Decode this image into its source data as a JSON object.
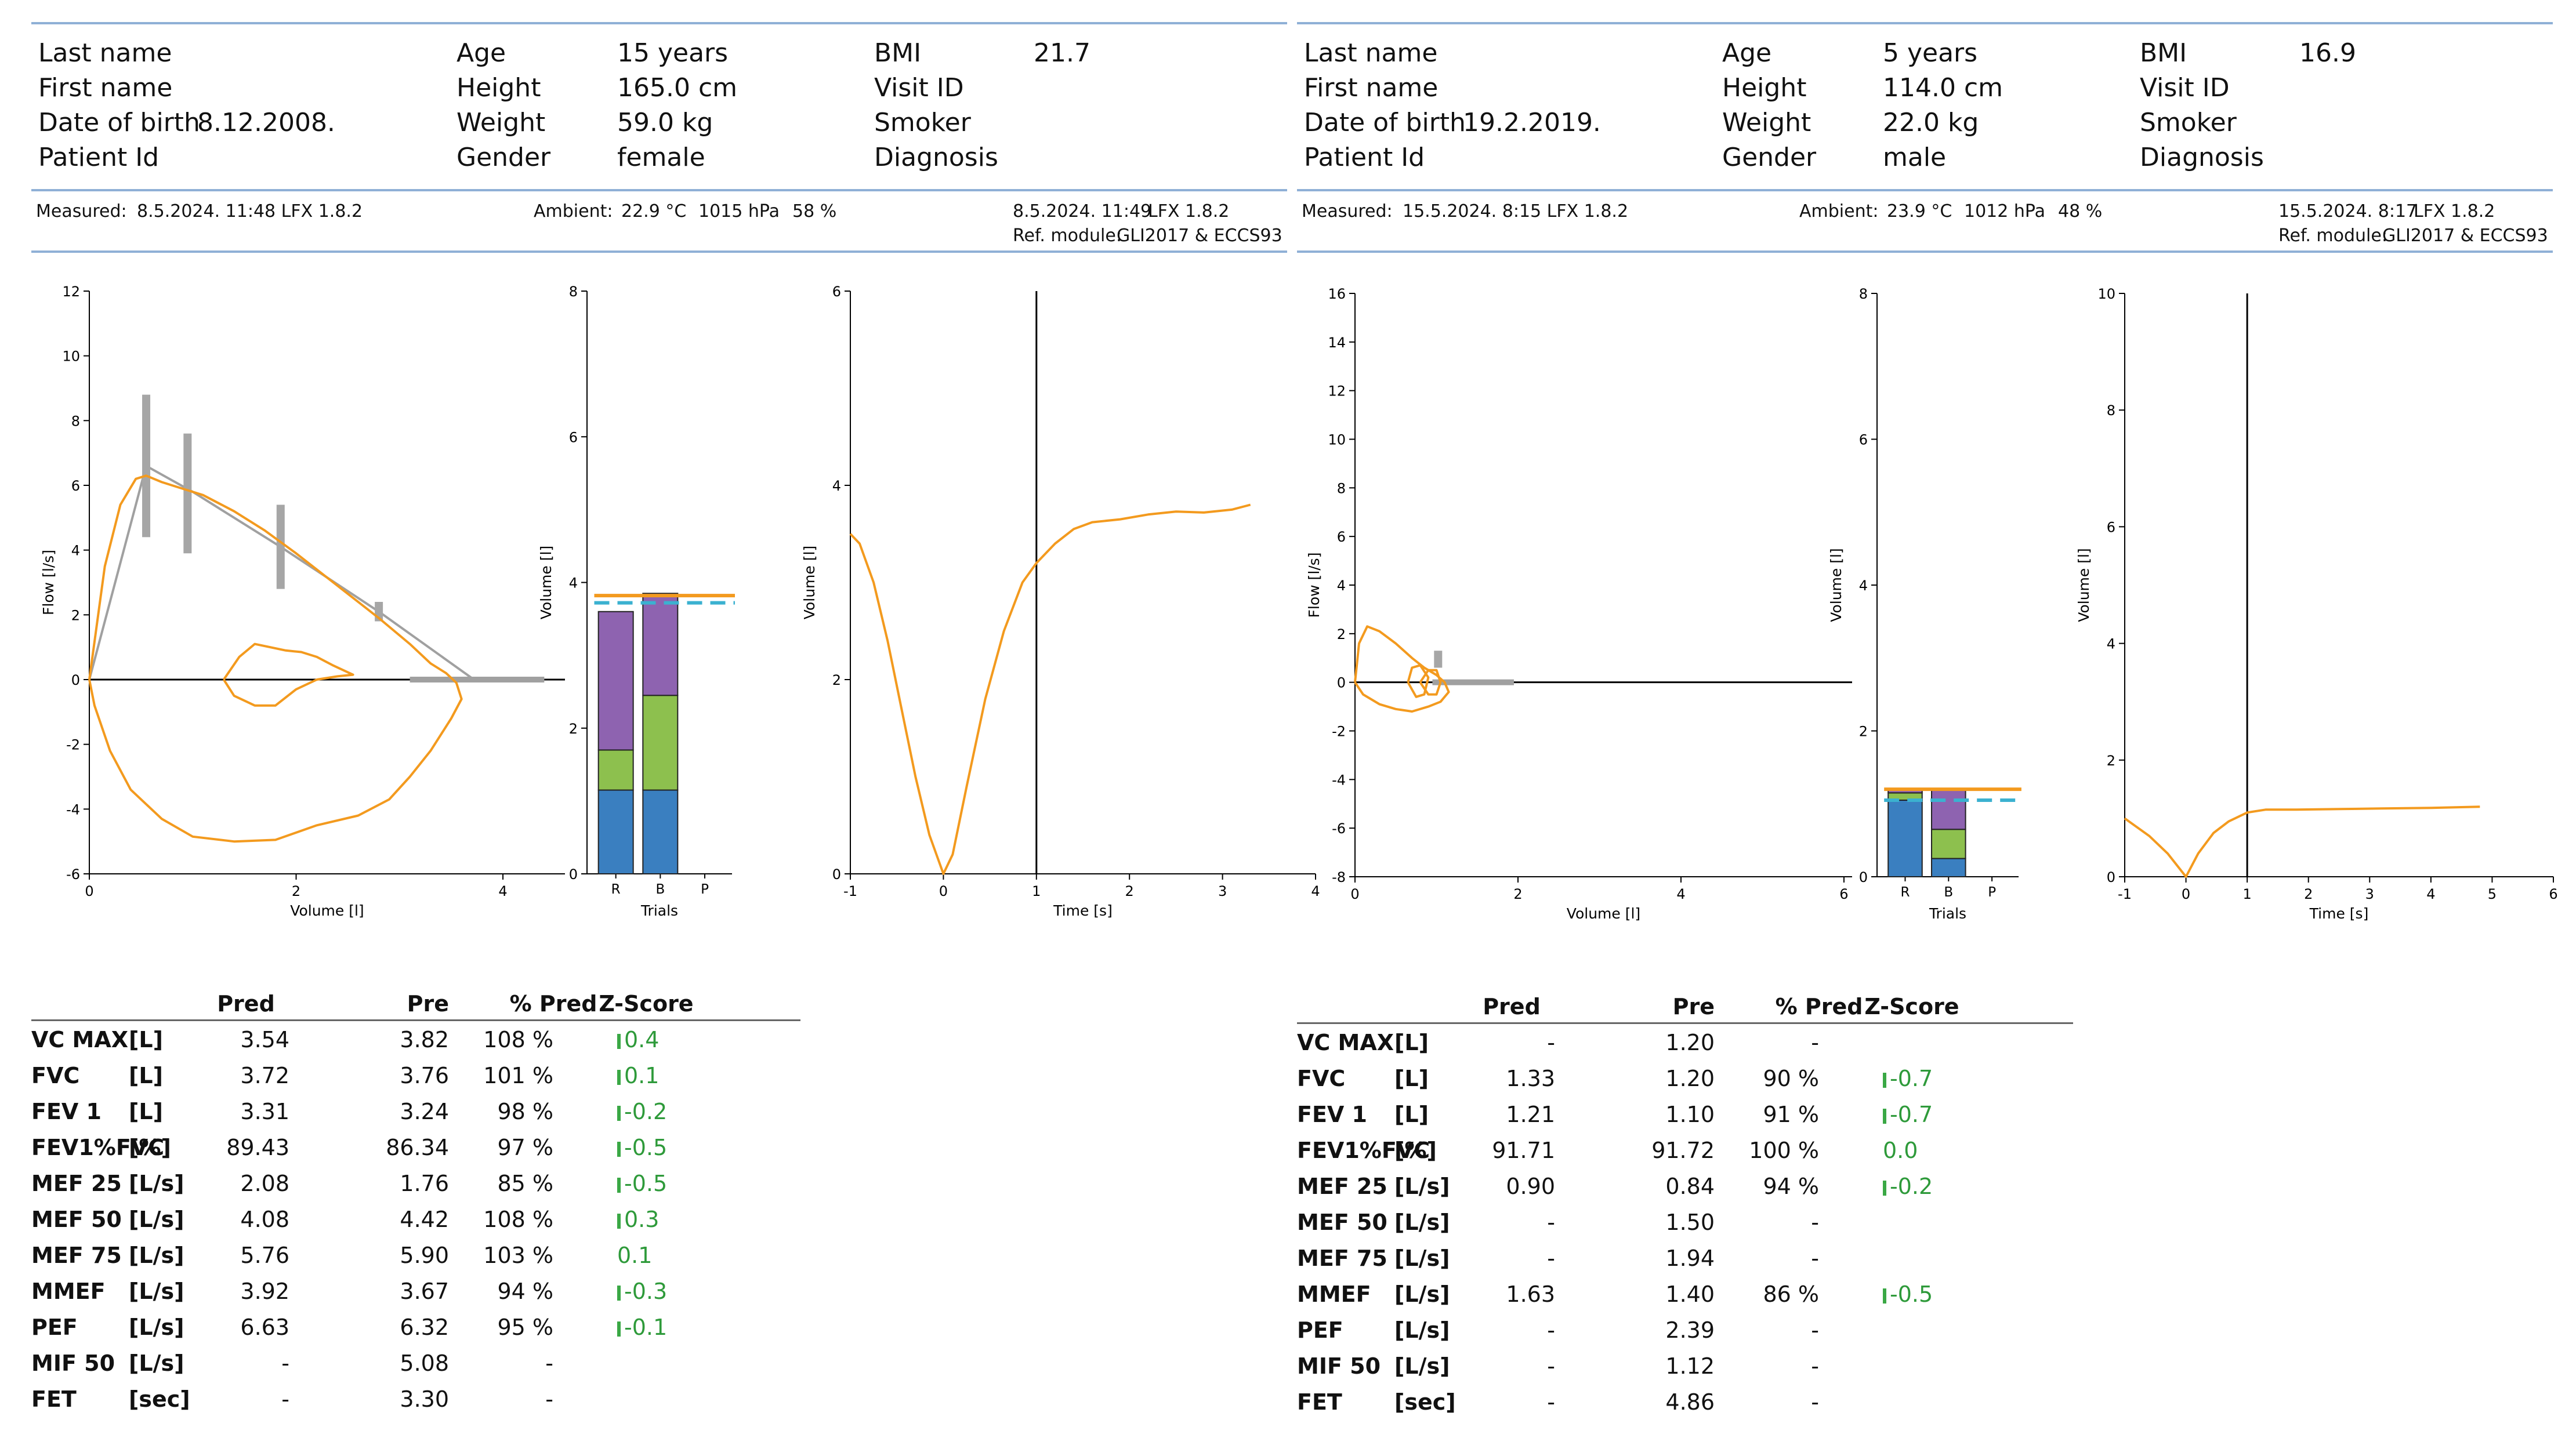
{
  "reports": [
    {
      "patient": {
        "last_name_label": "Last name",
        "first_name_label": "First name",
        "dob_label": "Date of birth",
        "dob": "8.12.2008.",
        "patient_id_label": "Patient Id",
        "age_label": "Age",
        "age": "15 years",
        "height_label": "Height",
        "height": "165.0 cm",
        "weight_label": "Weight",
        "weight": "59.0 kg",
        "gender_label": "Gender",
        "gender": "female",
        "bmi_label": "BMI",
        "bmi": "21.7",
        "visit_id_label": "Visit ID",
        "smoker_label": "Smoker",
        "diagnosis_label": "Diagnosis"
      },
      "measured": {
        "label": "Measured:",
        "value": "8.5.2024. 11:48 LFX 1.8.2",
        "ambient_label": "Ambient:",
        "temp": "22.9 °C",
        "pressure": "1015 hPa",
        "humidity": "58 %",
        "second_time": "8.5.2024. 11:49",
        "second_sw": "LFX 1.8.2",
        "ref_label": "Ref. module:",
        "ref_value": "GLI2017 & ECCS93"
      },
      "chart_data": [
        {
          "type": "line",
          "xlabel": "Volume [l]",
          "ylabel": "Flow [l/s]",
          "xlim": [
            0,
            4.6
          ],
          "ylim": [
            -6,
            12
          ],
          "xticks": [
            0,
            2,
            4
          ],
          "yticks": [
            -6,
            -4,
            -2,
            0,
            2,
            4,
            6,
            8,
            10,
            12
          ],
          "series": [
            {
              "x": [
                0,
                0.15,
                0.3,
                0.45,
                0.55,
                0.7,
                0.9,
                1.1,
                1.4,
                1.7,
                2.0,
                2.4,
                2.8,
                3.1,
                3.3,
                3.45,
                3.55,
                3.6,
                3.5,
                3.3,
                3.1,
                2.9,
                2.6,
                2.2,
                1.8,
                1.4,
                1.0,
                0.7,
                0.4,
                0.2,
                0.05,
                0
              ],
              "y": [
                0,
                3.5,
                5.4,
                6.2,
                6.3,
                6.1,
                5.9,
                5.7,
                5.2,
                4.6,
                3.9,
                2.9,
                1.9,
                1.1,
                0.5,
                0.2,
                -0.1,
                -0.6,
                -1.2,
                -2.2,
                -3.0,
                -3.7,
                -4.2,
                -4.5,
                -4.95,
                -5.0,
                -4.85,
                -4.3,
                -3.4,
                -2.2,
                -0.8,
                0
              ]
            },
            {
              "x": [
                1.3,
                1.45,
                1.6,
                1.75,
                1.9,
                2.05,
                2.2,
                2.35,
                2.55,
                2.4,
                2.2,
                2.0,
                1.8,
                1.6,
                1.4,
                1.3
              ],
              "y": [
                0.0,
                0.7,
                1.1,
                1.0,
                0.9,
                0.85,
                0.7,
                0.45,
                0.15,
                0.1,
                0.0,
                -0.3,
                -0.8,
                -0.8,
                -0.5,
                0.0
              ]
            }
          ],
          "predicted": {
            "x": [
              0,
              0.55,
              1.0,
              1.85,
              2.8,
              3.72
            ],
            "y": [
              0,
              6.6,
              5.8,
              4.1,
              2.1,
              0
            ]
          },
          "ranges": [
            {
              "x": 0.55,
              "ymin": 4.4,
              "ymax": 8.8
            },
            {
              "x": 0.95,
              "ymin": 3.9,
              "ymax": 7.6
            },
            {
              "x": 1.85,
              "ymin": 2.8,
              "ymax": 5.4
            },
            {
              "x": 2.8,
              "ymin": 1.8,
              "ymax": 2.4
            }
          ],
          "baseline_bar": {
            "xmin": 3.1,
            "xmax": 4.4
          }
        },
        {
          "type": "bar",
          "xlabel": "Trials",
          "ylabel": "Volume [l]",
          "categories": [
            "R",
            "B",
            "P"
          ],
          "ylim": [
            0,
            8
          ],
          "yticks": [
            0,
            2,
            4,
            6,
            8
          ],
          "stacks": [
            {
              "category": "R",
              "segments": [
                1.15,
                0.55,
                1.9
              ]
            },
            {
              "category": "B",
              "segments": [
                1.15,
                1.3,
                1.4
              ]
            }
          ],
          "segment_colors": [
            "#3a7fc0",
            "#8dc04e",
            "#8e63b0"
          ],
          "pred_line": 3.82,
          "pred_dashed": 3.72
        },
        {
          "type": "line",
          "xlabel": "Time [s]",
          "ylabel": "Volume [l]",
          "xlim": [
            -1,
            4
          ],
          "ylim": [
            0,
            6
          ],
          "xticks": [
            -1,
            0,
            1,
            2,
            3,
            4
          ],
          "yticks": [
            0,
            2,
            4,
            6
          ],
          "marker_x": 1,
          "series": [
            {
              "x": [
                -1,
                -0.9,
                -0.75,
                -0.6,
                -0.45,
                -0.3,
                -0.15,
                0,
                0.1,
                0.25,
                0.45,
                0.65,
                0.85,
                1.0,
                1.2,
                1.4,
                1.6,
                1.9,
                2.2,
                2.5,
                2.8,
                3.1,
                3.3
              ],
              "y": [
                3.5,
                3.4,
                3.0,
                2.4,
                1.7,
                1.0,
                0.4,
                0.0,
                0.2,
                0.9,
                1.8,
                2.5,
                3.0,
                3.2,
                3.4,
                3.55,
                3.62,
                3.65,
                3.7,
                3.73,
                3.72,
                3.75,
                3.8
              ]
            }
          ]
        }
      ],
      "table": {
        "headers": {
          "pred": "Pred",
          "pre": "Pre",
          "pct": "% Pred",
          "z": "Z-Score"
        },
        "rows": [
          {
            "name": "VC MAX",
            "unit": "[L]",
            "pred": "3.54",
            "pre": "3.82",
            "pct": "108 %",
            "z": "0.4",
            "zbar": true
          },
          {
            "name": "FVC",
            "unit": "[L]",
            "pred": "3.72",
            "pre": "3.76",
            "pct": "101 %",
            "z": "0.1",
            "zbar": true
          },
          {
            "name": "FEV 1",
            "unit": "[L]",
            "pred": "3.31",
            "pre": "3.24",
            "pct": "98 %",
            "z": "-0.2",
            "zbar": true
          },
          {
            "name": "FEV1%FVC",
            "unit": "[%]",
            "pred": "89.43",
            "pre": "86.34",
            "pct": "97 %",
            "z": "-0.5",
            "zbar": true
          },
          {
            "name": "MEF 25",
            "unit": "[L/s]",
            "pred": "2.08",
            "pre": "1.76",
            "pct": "85 %",
            "z": "-0.5",
            "zbar": true
          },
          {
            "name": "MEF 50",
            "unit": "[L/s]",
            "pred": "4.08",
            "pre": "4.42",
            "pct": "108 %",
            "z": "0.3",
            "zbar": true
          },
          {
            "name": "MEF 75",
            "unit": "[L/s]",
            "pred": "5.76",
            "pre": "5.90",
            "pct": "103 %",
            "z": "0.1",
            "zbar": false
          },
          {
            "name": "MMEF",
            "unit": "[L/s]",
            "pred": "3.92",
            "pre": "3.67",
            "pct": "94 %",
            "z": "-0.3",
            "zbar": true
          },
          {
            "name": "PEF",
            "unit": "[L/s]",
            "pred": "6.63",
            "pre": "6.32",
            "pct": "95 %",
            "z": "-0.1",
            "zbar": true
          },
          {
            "name": "MIF 50",
            "unit": "[L/s]",
            "pred": "-",
            "pre": "5.08",
            "pct": "-",
            "z": "",
            "zbar": false
          },
          {
            "name": "FET",
            "unit": "[sec]",
            "pred": "-",
            "pre": "3.30",
            "pct": "-",
            "z": "",
            "zbar": false
          }
        ]
      }
    },
    {
      "patient": {
        "last_name_label": "Last name",
        "first_name_label": "First name",
        "dob_label": "Date of birth",
        "dob": "19.2.2019.",
        "patient_id_label": "Patient Id",
        "age_label": "Age",
        "age": "5 years",
        "height_label": "Height",
        "height": "114.0 cm",
        "weight_label": "Weight",
        "weight": "22.0 kg",
        "gender_label": "Gender",
        "gender": "male",
        "bmi_label": "BMI",
        "bmi": "16.9",
        "visit_id_label": "Visit ID",
        "smoker_label": "Smoker",
        "diagnosis_label": "Diagnosis"
      },
      "measured": {
        "label": "Measured:",
        "value": "15.5.2024. 8:15 LFX 1.8.2",
        "ambient_label": "Ambient:",
        "temp": "23.9 °C",
        "pressure": "1012 hPa",
        "humidity": "48 %",
        "second_time": "15.5.2024. 8:17",
        "second_sw": "LFX 1.8.2",
        "ref_label": "Ref. module:",
        "ref_value": "GLI2017 & ECCS93"
      },
      "chart_data": [
        {
          "type": "line",
          "xlabel": "Volume [l]",
          "ylabel": "Flow [l/s]",
          "xlim": [
            0,
            6.1
          ],
          "ylim": [
            -8,
            16
          ],
          "xticks": [
            0,
            2,
            4,
            6
          ],
          "yticks": [
            -8,
            -6,
            -4,
            -2,
            0,
            2,
            4,
            6,
            8,
            10,
            12,
            14,
            16
          ],
          "series": [
            {
              "x": [
                0,
                0.05,
                0.15,
                0.3,
                0.5,
                0.7,
                0.85,
                1.0,
                1.1,
                1.15,
                1.05,
                0.9,
                0.7,
                0.5,
                0.3,
                0.1,
                0
              ],
              "y": [
                0,
                1.6,
                2.3,
                2.1,
                1.6,
                1.0,
                0.6,
                0.3,
                0.0,
                -0.4,
                -0.8,
                -1.0,
                -1.2,
                -1.1,
                -0.9,
                -0.5,
                0
              ]
            },
            {
              "x": [
                0.65,
                0.7,
                0.8,
                0.9,
                0.85,
                0.75,
                0.65
              ],
              "y": [
                0,
                0.6,
                0.7,
                0.2,
                -0.5,
                -0.6,
                0
              ]
            },
            {
              "x": [
                0.8,
                0.9,
                1.0,
                1.05,
                1.0,
                0.9,
                0.8
              ],
              "y": [
                0,
                0.5,
                0.5,
                0,
                -0.5,
                -0.5,
                0
              ]
            }
          ],
          "ranges": [
            {
              "x": 1.02,
              "ymin": 0.6,
              "ymax": 1.3
            }
          ],
          "baseline_bar": {
            "xmin": 0.95,
            "xmax": 1.95
          }
        },
        {
          "type": "bar",
          "xlabel": "Trials",
          "ylabel": "Volume [l]",
          "categories": [
            "R",
            "B",
            "P"
          ],
          "ylim": [
            0,
            8
          ],
          "yticks": [
            0,
            2,
            4,
            6,
            8
          ],
          "stacks": [
            {
              "category": "R",
              "segments": [
                1.05,
                0.1,
                0.05
              ]
            },
            {
              "category": "B",
              "segments": [
                0.25,
                0.4,
                0.55
              ]
            }
          ],
          "segment_colors": [
            "#3a7fc0",
            "#8dc04e",
            "#8e63b0"
          ],
          "pred_line": 1.2,
          "pred_dashed": 1.05
        },
        {
          "type": "line",
          "xlabel": "Time [s]",
          "ylabel": "Volume [l]",
          "xlim": [
            -1,
            6
          ],
          "ylim": [
            0,
            10
          ],
          "xticks": [
            -1,
            0,
            1,
            2,
            3,
            4,
            5,
            6
          ],
          "yticks": [
            0,
            2,
            4,
            6,
            8,
            10
          ],
          "marker_x": 1,
          "series": [
            {
              "x": [
                -1,
                -0.6,
                -0.3,
                0,
                0.2,
                0.45,
                0.7,
                1.0,
                1.3,
                1.8,
                2.5,
                3.2,
                4.0,
                4.8
              ],
              "y": [
                1.0,
                0.7,
                0.4,
                0.0,
                0.4,
                0.75,
                0.95,
                1.1,
                1.15,
                1.15,
                1.16,
                1.17,
                1.18,
                1.2
              ]
            }
          ]
        }
      ],
      "table": {
        "headers": {
          "pred": "Pred",
          "pre": "Pre",
          "pct": "% Pred",
          "z": "Z-Score"
        },
        "rows": [
          {
            "name": "VC MAX",
            "unit": "[L]",
            "pred": "-",
            "pre": "1.20",
            "pct": "-",
            "z": "",
            "zbar": false
          },
          {
            "name": "FVC",
            "unit": "[L]",
            "pred": "1.33",
            "pre": "1.20",
            "pct": "90 %",
            "z": "-0.7",
            "zbar": true
          },
          {
            "name": "FEV 1",
            "unit": "[L]",
            "pred": "1.21",
            "pre": "1.10",
            "pct": "91 %",
            "z": "-0.7",
            "zbar": true
          },
          {
            "name": "FEV1%FVC",
            "unit": "[%]",
            "pred": "91.71",
            "pre": "91.72",
            "pct": "100 %",
            "z": "0.0",
            "zbar": false
          },
          {
            "name": "MEF 25",
            "unit": "[L/s]",
            "pred": "0.90",
            "pre": "0.84",
            "pct": "94 %",
            "z": "-0.2",
            "zbar": true
          },
          {
            "name": "MEF 50",
            "unit": "[L/s]",
            "pred": "-",
            "pre": "1.50",
            "pct": "-",
            "z": "",
            "zbar": false
          },
          {
            "name": "MEF 75",
            "unit": "[L/s]",
            "pred": "-",
            "pre": "1.94",
            "pct": "-",
            "z": "",
            "zbar": false
          },
          {
            "name": "MMEF",
            "unit": "[L/s]",
            "pred": "1.63",
            "pre": "1.40",
            "pct": "86 %",
            "z": "-0.5",
            "zbar": true
          },
          {
            "name": "PEF",
            "unit": "[L/s]",
            "pred": "-",
            "pre": "2.39",
            "pct": "-",
            "z": "",
            "zbar": false
          },
          {
            "name": "MIF 50",
            "unit": "[L/s]",
            "pred": "-",
            "pre": "1.12",
            "pct": "-",
            "z": "",
            "zbar": false
          },
          {
            "name": "FET",
            "unit": "[sec]",
            "pred": "-",
            "pre": "4.86",
            "pct": "-",
            "z": "",
            "zbar": false
          }
        ]
      },
      "colors": {
        "curve": "#f39a1e",
        "predicted": "#a0a0a0",
        "range": "#a6a6a6",
        "dashed": "#3bb1d0",
        "rule": "#8fb0d6",
        "zscore": "#2e9a3a"
      }
    }
  ]
}
